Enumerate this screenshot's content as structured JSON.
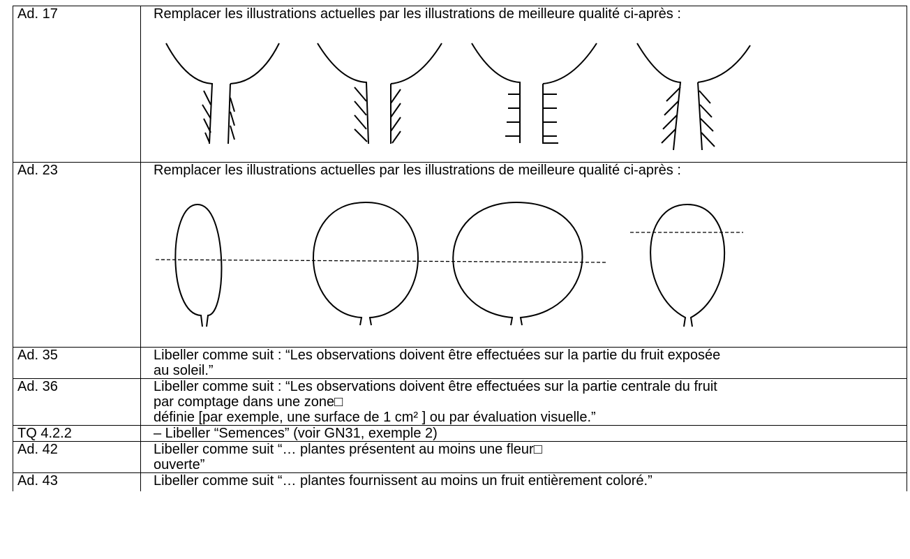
{
  "table": {
    "rows": [
      [
        "Ad. 17",
        [
          "Remplacer les illustrations actuelles par les illustrations de meilleure qualité ci-après :"
        ]
      ],
      [
        "Ad. 23",
        [
          "Remplacer les illustrations actuelles par les illustrations de meilleure qualité ci-après :"
        ]
      ],
      [
        "Ad. 35",
        [
          "Libeller comme suit : “Les observations doivent être effectuées sur la partie du fruit exposée",
          "au soleil.”"
        ]
      ],
      [
        "Ad. 36",
        [
          "Libeller comme suit : “Les observations doivent être effectuées sur la partie centrale du fruit",
          "par comptage dans une zone□",
          "définie [par exemple, une surface de 1 cm² ] ou par évaluation visuelle.”"
        ]
      ],
      [
        "TQ 4.2.2",
        [
          "– Libeller “Semences” (voir GN31, exemple 2)"
        ]
      ],
      [
        "Ad. 42",
        [
          "Libeller comme suit “… plantes présentent au moins une fleur□",
          "ouverte”"
        ]
      ],
      [
        "Ad. 43",
        [
          "Libeller comme suit “… plantes fournissent au moins un fruit entièrement coloré.”"
        ]
      ]
    ]
  }
}
